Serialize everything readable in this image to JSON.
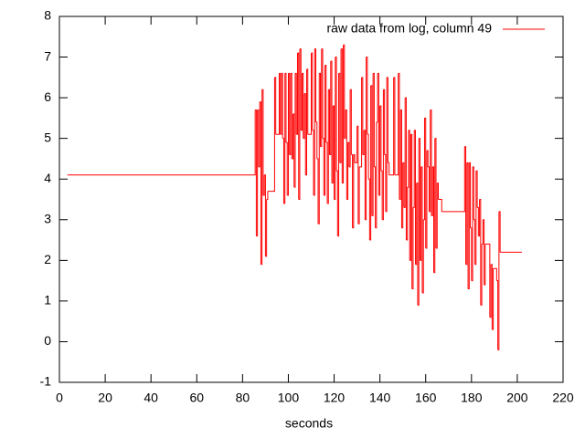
{
  "chart_data": {
    "type": "line",
    "line_style": "steps",
    "xlabel": "seconds",
    "xlim": [
      0,
      220
    ],
    "ylim": [
      -1,
      8
    ],
    "xticks": [
      0,
      20,
      40,
      60,
      80,
      100,
      120,
      140,
      160,
      180,
      200,
      220
    ],
    "yticks": [
      -1,
      0,
      1,
      2,
      3,
      4,
      5,
      6,
      7,
      8
    ],
    "legend": "top-right",
    "series": [
      {
        "name": "raw data from log, column 49",
        "color": "#ff0000",
        "x": [
          3.5,
          85.5,
          86,
          86.5,
          87,
          87.5,
          88,
          88.5,
          89,
          89.5,
          90,
          90.5,
          91,
          94,
          94.5,
          96,
          96.5,
          97,
          97.5,
          98,
          98.5,
          99,
          99.5,
          100,
          100.5,
          101,
          101.5,
          102,
          102.5,
          103,
          103.5,
          104,
          104.5,
          105,
          105.5,
          106,
          106.5,
          107,
          107.5,
          108,
          108.5,
          110,
          110.5,
          111,
          111.5,
          112,
          112.5,
          113,
          113.5,
          114,
          114.5,
          115,
          115.5,
          116,
          116.5,
          117,
          117.5,
          118,
          118.5,
          119,
          119.5,
          120,
          120.5,
          121,
          121.5,
          122,
          122.5,
          123,
          123.5,
          124,
          124.5,
          125,
          125.5,
          126,
          126.5,
          127,
          127.5,
          128,
          128.5,
          129,
          130,
          130.5,
          131,
          132,
          132.5,
          133,
          133.5,
          134,
          134.5,
          135,
          135.5,
          136,
          136.5,
          137,
          137.5,
          138,
          138.5,
          139,
          139.5,
          140,
          140.5,
          141,
          141.5,
          142,
          142.5,
          143,
          143.5,
          144,
          146,
          146.5,
          148,
          148.5,
          149,
          149.5,
          150,
          150.5,
          151,
          151.5,
          152,
          152.5,
          153,
          153.5,
          154,
          154.5,
          155,
          155.5,
          156,
          156.5,
          157,
          157.5,
          158,
          158.5,
          159,
          159.5,
          160,
          160.5,
          161,
          161.5,
          162,
          162.5,
          163,
          163.5,
          164,
          164.5,
          165,
          165.5,
          167,
          177,
          177.5,
          178,
          178.5,
          179,
          179.5,
          180,
          180.5,
          181,
          181.5,
          182,
          182.5,
          183,
          183.5,
          184,
          184.5,
          185,
          185.5,
          186,
          188,
          188.5,
          189,
          189.5,
          191,
          191.5,
          192,
          192.5,
          202
        ],
        "values": [
          4.1,
          5.7,
          2.6,
          5.7,
          4.3,
          5.9,
          1.9,
          6.2,
          3.6,
          4.1,
          2.1,
          3.5,
          3.7,
          6.5,
          5.1,
          6.6,
          5.1,
          6.6,
          5.0,
          3.4,
          6.6,
          4.9,
          3.6,
          6.6,
          4.6,
          6.6,
          4.5,
          5.6,
          3.8,
          6.6,
          5.1,
          7.1,
          3.5,
          7.2,
          5.2,
          6.6,
          5.0,
          6.1,
          4.1,
          6.7,
          5.1,
          7.1,
          5.2,
          3.6,
          7.2,
          5.4,
          4.5,
          2.9,
          6.6,
          4.8,
          7.2,
          5.0,
          3.6,
          6.8,
          4.9,
          3.4,
          6.2,
          4.6,
          6.9,
          3.9,
          5.8,
          3.5,
          7.0,
          4.2,
          2.6,
          6.6,
          4.4,
          7.2,
          3.9,
          7.3,
          5.0,
          5.7,
          3.5,
          4.9,
          4.3,
          6.2,
          4.6,
          2.8,
          4.6,
          4.4,
          5.3,
          2.9,
          4.3,
          6.5,
          4.6,
          5.2,
          3.0,
          7.0,
          5.1,
          4.0,
          2.5,
          6.3,
          3.1,
          6.6,
          4.3,
          2.8,
          5.4,
          6.6,
          3.6,
          5.8,
          4.2,
          3.0,
          6.2,
          4.6,
          3.2,
          6.5,
          4.4,
          4.1,
          6.5,
          4.1,
          6.6,
          3.5,
          5.7,
          2.8,
          4.4,
          3.3,
          6.0,
          2.5,
          3.8,
          5.2,
          2.0,
          5.1,
          1.3,
          3.3,
          5.2,
          1.9,
          3.9,
          0.9,
          5.0,
          2.0,
          4.3,
          1.2,
          3.0,
          5.5,
          2.3,
          4.7,
          4.3,
          3.2,
          5.7,
          3.1,
          4.3,
          1.7,
          5.0,
          2.3,
          3.9,
          3.5,
          3.2,
          4.8,
          1.9,
          4.4,
          1.3,
          4.4,
          2.8,
          1.5,
          4.3,
          3.0,
          1.9,
          4.2,
          3.3,
          2.6,
          3.5,
          0.9,
          2.4,
          3.0,
          1.4,
          2.4,
          0.6,
          1.9,
          0.3,
          1.8,
          1.5,
          -0.2,
          3.2,
          2.2,
          2.2
        ]
      }
    ]
  }
}
